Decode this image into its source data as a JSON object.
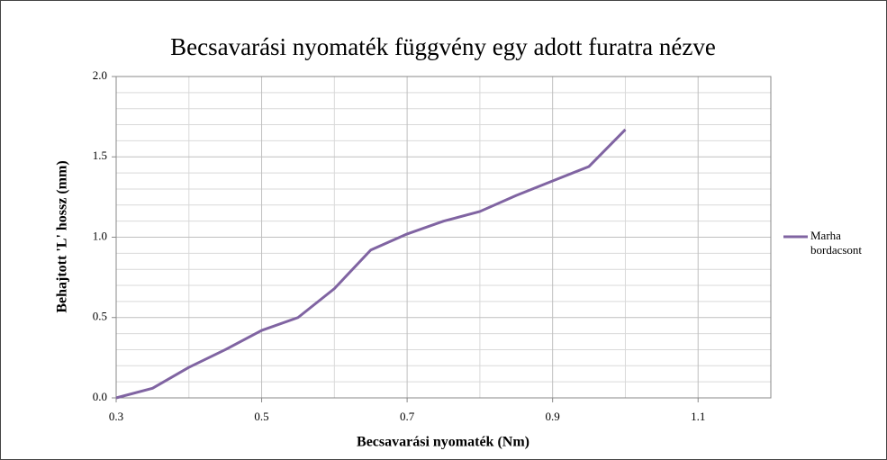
{
  "chart_data": {
    "type": "line",
    "title": "Becsavarási nyomaték függvény egy adott furatra nézve",
    "x_label": "Becsavarási nyomaték (Nm)",
    "y_label": "Behajtott 'L' hossz (mm)",
    "x": [
      0.3,
      0.35,
      0.4,
      0.45,
      0.5,
      0.55,
      0.6,
      0.65,
      0.7,
      0.75,
      0.8,
      0.85,
      0.9,
      0.95,
      1.0
    ],
    "series": [
      {
        "name": "Marha bordacsont",
        "color": "#8064a2",
        "values": [
          0,
          0.06,
          0.19,
          0.3,
          0.42,
          0.5,
          0.68,
          0.92,
          1.02,
          1.1,
          1.16,
          1.26,
          1.35,
          1.44,
          1.67
        ]
      }
    ],
    "xlim": [
      0.3,
      1.2
    ],
    "xticks": [
      0.3,
      0.5,
      0.7,
      0.9,
      1.1
    ],
    "ylim": [
      0,
      2
    ],
    "yticks": [
      {
        "value": 0,
        "label": "0.0"
      },
      0.5,
      {
        "value": 1,
        "label": "1.0"
      },
      1.5,
      {
        "value": 2,
        "label": "2.0"
      }
    ],
    "grid": true,
    "legend": "right"
  }
}
